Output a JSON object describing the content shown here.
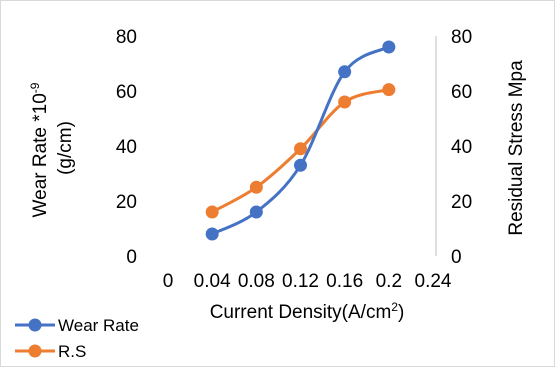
{
  "chart_data": {
    "type": "line",
    "x": [
      0.04,
      0.08,
      0.12,
      0.16,
      0.2
    ],
    "x_ticks": [
      "0",
      "0.04",
      "0.08",
      "0.12",
      "0.16",
      "0.2",
      "0.24"
    ],
    "xlim": [
      0,
      0.24
    ],
    "xlabel": "Current Density(A/cm",
    "xlabel_sup": "2",
    "xlabel_end": ")",
    "ylabel_line1": "Wear Rate *10",
    "ylabel_sup": "-9",
    "ylabel_line2": "(g/cm)",
    "ylim": [
      0,
      80
    ],
    "y_ticks": [
      "0",
      "20",
      "40",
      "60",
      "80"
    ],
    "y2label": "Residual Stress Mpa",
    "y2lim": [
      0,
      80
    ],
    "y2_ticks": [
      "0",
      "20",
      "40",
      "60",
      "80"
    ],
    "grid": false,
    "legend_position": "bottom-left",
    "series": [
      {
        "name": "Wear Rate",
        "axis": "left",
        "color": "#4472C4",
        "values": [
          8,
          16,
          33,
          67,
          76
        ]
      },
      {
        "name": "R.S",
        "axis": "right",
        "color": "#ED7D31",
        "values": [
          16,
          25,
          39,
          56,
          60.5
        ]
      }
    ]
  }
}
